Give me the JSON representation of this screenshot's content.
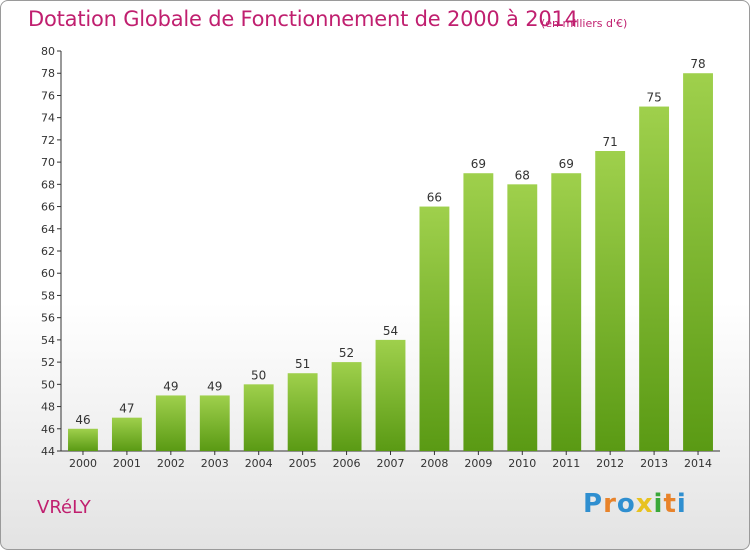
{
  "chart_data": {
    "type": "bar",
    "title": "Dotation Globale de Fonctionnement de 2000 à 2014",
    "subtitle": "(en milliers d'€)",
    "categories": [
      "2000",
      "2001",
      "2002",
      "2003",
      "2004",
      "2005",
      "2006",
      "2007",
      "2008",
      "2009",
      "2010",
      "2011",
      "2012",
      "2013",
      "2014"
    ],
    "values": [
      46,
      47,
      49,
      49,
      50,
      51,
      52,
      54,
      66,
      69,
      68,
      69,
      71,
      75,
      78
    ],
    "ylim": [
      44,
      80
    ],
    "ytick_step": 2,
    "grid": false,
    "bar_color_top": "#9fd04c",
    "bar_color_bottom": "#5a9a14"
  },
  "footer": {
    "commune": "VRéLY",
    "logo": "Proxiti",
    "logo_letters": [
      "P",
      "r",
      "o",
      "x",
      "i",
      "t",
      "i"
    ],
    "logo_colors": [
      "#2f8fd0",
      "#e8832a",
      "#2f8fd0",
      "#e8c21f",
      "#3aa83a",
      "#e8832a",
      "#2f8fd0"
    ]
  },
  "colors": {
    "accent": "#c01f6f",
    "axis": "#333333"
  }
}
